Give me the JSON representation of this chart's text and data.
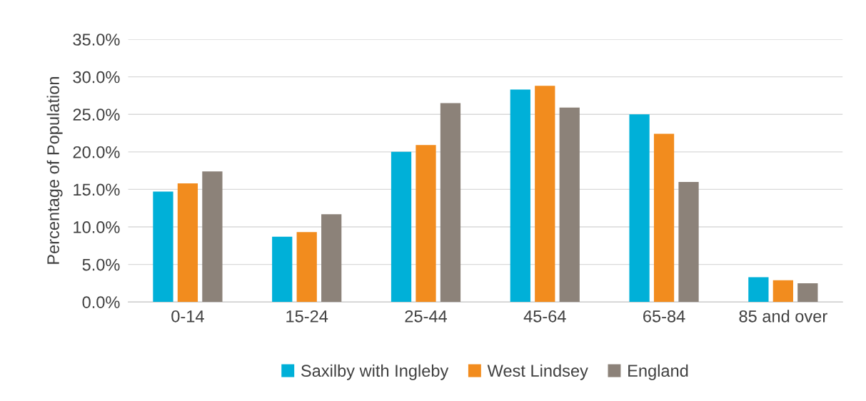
{
  "chart_data": {
    "type": "bar",
    "ylabel": "Percentage of Population",
    "categories": [
      "0-14",
      "15-24",
      "25-44",
      "45-64",
      "65-84",
      "85 and over"
    ],
    "series": [
      {
        "name": "Saxilby with Ingleby",
        "color": "#00b0d8",
        "values": [
          14.7,
          8.7,
          20.0,
          28.3,
          25.0,
          3.3
        ]
      },
      {
        "name": "West Lindsey",
        "color": "#f28c1e",
        "values": [
          15.8,
          9.3,
          20.9,
          28.8,
          22.4,
          2.9
        ]
      },
      {
        "name": "England",
        "color": "#8c8279",
        "values": [
          17.4,
          11.7,
          26.5,
          25.9,
          16.0,
          2.5
        ]
      }
    ],
    "ylim": [
      0,
      35
    ],
    "yticks": [
      {
        "value": 0,
        "label": "0.0%"
      },
      {
        "value": 5,
        "label": "5.0%"
      },
      {
        "value": 10,
        "label": "10.0%"
      },
      {
        "value": 15,
        "label": "15.0%"
      },
      {
        "value": 20,
        "label": "20.0%"
      },
      {
        "value": 25,
        "label": "25.0%"
      },
      {
        "value": 30,
        "label": "30.0%"
      },
      {
        "value": 35,
        "label": "35.0%"
      }
    ],
    "grid": "y",
    "legend": "bottom"
  }
}
